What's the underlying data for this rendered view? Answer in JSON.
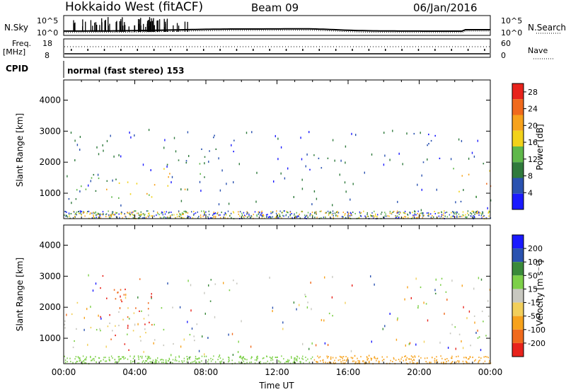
{
  "header": {
    "station": "Hokkaido West (fitACF)",
    "beam": "Beam 09",
    "date": "06/Jan/2016"
  },
  "status_panels": {
    "nsky_label": "N.Sky",
    "nsearch_label": "N.Search",
    "freq_label": "Freq.",
    "freq_unit": "[MHz]",
    "nave_label": "Nave",
    "cpid_label": "CPID",
    "noise_ticks_left": [
      "10^5",
      "10^0"
    ],
    "noise_ticks_right": [
      "10^5",
      "10^0"
    ],
    "freq_ticks": [
      "18",
      "8"
    ],
    "nave_ticks": [
      "60",
      "0"
    ],
    "cpid_text": "normal (fast stereo) 153"
  },
  "colors": {
    "power_scale": [
      "#1a1aff",
      "#2a52b0",
      "#2f7a3c",
      "#5fb84a",
      "#f2d21a",
      "#f7a21c",
      "#f06a1c",
      "#e8231c"
    ],
    "velocity_scale": [
      "#e8231c",
      "#f06a1c",
      "#f7a21c",
      "#f2cf5a",
      "#c8c8c0",
      "#7dd048",
      "#3a8a3a",
      "#2a52b0",
      "#1a1aff"
    ],
    "ground_scatter": "#bdbdb4"
  },
  "chart_data": [
    {
      "type": "heatmap",
      "title": "",
      "xlabel": "",
      "ylabel": "Slant Range [km]",
      "xlim": [
        "00:00",
        "24:00"
      ],
      "ylim": [
        180,
        4650
      ],
      "x_ticks": [
        "00:00",
        "04:00",
        "08:00",
        "12:00",
        "16:00",
        "20:00",
        "00:00"
      ],
      "y_ticks": [
        1000,
        2000,
        3000,
        4000
      ],
      "colorbar": {
        "label": "Power [dB]",
        "ticks": [
          4,
          8,
          12,
          16,
          20,
          24,
          28
        ],
        "range": [
          0,
          30
        ]
      },
      "echo_regions": [
        {
          "name": "",
          "t_start": 0.0,
          "t_end": 2.0,
          "range_low": 700,
          "range_high": 1850,
          "power": 14
        },
        {
          "name": "",
          "t_start": 2.0,
          "t_end": 5.0,
          "range_low": 650,
          "range_high": 1650,
          "power": 18
        },
        {
          "name": "",
          "t_start": 5.0,
          "t_end": 7.0,
          "range_low": 750,
          "range_high": 2100,
          "power": 20
        },
        {
          "name": "",
          "t_start": 7.0,
          "t_end": 8.0,
          "range_low": 1300,
          "range_high": 2500,
          "power": 14
        },
        {
          "name": "",
          "t_start": 8.0,
          "t_end": 10.0,
          "range_low": 2200,
          "range_high": 2950,
          "power": 6
        },
        {
          "name": "",
          "t_start": 13.5,
          "t_end": 15.2,
          "range_low": 1750,
          "range_high": 2550,
          "power": 6
        },
        {
          "name": "",
          "t_start": 19.6,
          "t_end": 21.5,
          "range_low": 1900,
          "range_high": 2950,
          "power": 6
        },
        {
          "name": "",
          "t_start": 21.5,
          "t_end": 24.0,
          "range_low": 750,
          "range_high": 2000,
          "power": 22
        }
      ],
      "ground_scatter_band": {
        "t_start": 0.0,
        "t_end": 24.0,
        "range_low": 200,
        "range_high": 450
      }
    },
    {
      "type": "heatmap",
      "title": "",
      "xlabel": "Time UT",
      "ylabel": "Slant Range [km]",
      "xlim": [
        "00:00",
        "24:00"
      ],
      "ylim": [
        180,
        4650
      ],
      "x_ticks": [
        "00:00",
        "04:00",
        "08:00",
        "12:00",
        "16:00",
        "20:00",
        "00:00"
      ],
      "y_ticks": [
        1000,
        2000,
        3000,
        4000
      ],
      "colorbar": {
        "label": "Velocity [m s⁻¹]",
        "ticks": [
          200,
          100,
          50,
          15,
          -15,
          -50,
          -100,
          -200
        ],
        "range": [
          -250,
          250
        ]
      },
      "echo_regions": [
        {
          "name": "",
          "t_start": 0.0,
          "t_end": 7.5,
          "range_low": 700,
          "range_high": 2200,
          "velocity": 0
        },
        {
          "name": "",
          "t_start": 2.0,
          "t_end": 5.0,
          "range_low": 600,
          "range_high": 3100,
          "velocity": -200
        },
        {
          "name": "",
          "t_start": 8.0,
          "t_end": 10.0,
          "range_low": 2200,
          "range_high": 2950,
          "velocity": 30
        },
        {
          "name": "",
          "t_start": 13.5,
          "t_end": 15.2,
          "range_low": 1750,
          "range_high": 2550,
          "velocity": 20
        },
        {
          "name": "",
          "t_start": 16.0,
          "t_end": 22.0,
          "range_low": 200,
          "range_high": 500,
          "velocity": -60
        },
        {
          "name": "",
          "t_start": 19.6,
          "t_end": 21.5,
          "range_low": 1900,
          "range_high": 2950,
          "velocity": 40
        },
        {
          "name": "",
          "t_start": 21.5,
          "t_end": 24.0,
          "range_low": 750,
          "range_high": 2000,
          "velocity": 10
        }
      ]
    }
  ]
}
